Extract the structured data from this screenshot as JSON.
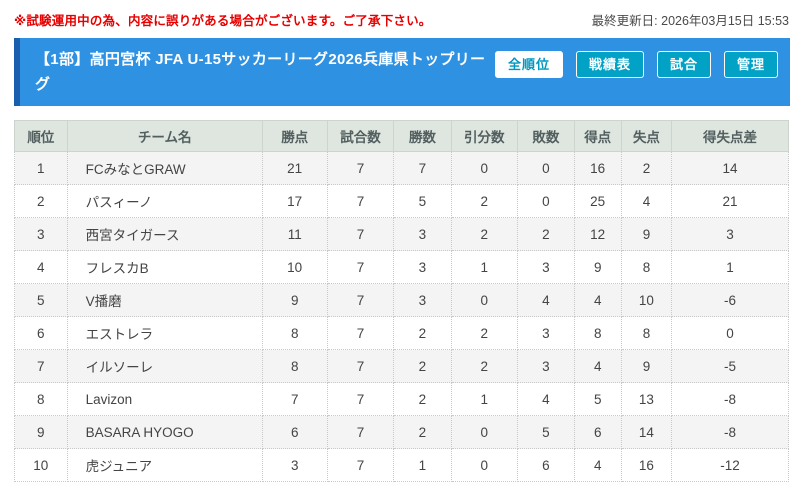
{
  "topbar": {
    "notice": "※試験運用中の為、内容に誤りがある場合がございます。ご了承下さい。",
    "last_updated": "最終更新日: 2026年03月15日 15:53"
  },
  "header": {
    "title": "【1部】高円宮杯 JFA U-15サッカーリーグ2026兵庫県トップリーグ",
    "buttons": [
      {
        "label": "全順位",
        "active": true
      },
      {
        "label": "戦績表",
        "active": false
      },
      {
        "label": "試合",
        "active": false
      },
      {
        "label": "管理",
        "active": false
      }
    ]
  },
  "colors": {
    "header_bg": "#2e91e2",
    "header_accent": "#1a5fae",
    "button_teal": "#01a2c6",
    "active_button_text": "#0097c0",
    "notice_red": "#e60000",
    "thead_bg": "#dfe6e0",
    "row_stripe": "#f4f4f4"
  },
  "table": {
    "columns": [
      "順位",
      "チーム名",
      "勝点",
      "試合数",
      "勝数",
      "引分数",
      "敗数",
      "得点",
      "失点",
      "得失点差"
    ],
    "column_widths_pct": [
      6.8,
      25.2,
      8.4,
      8.6,
      7.4,
      8.6,
      7.3,
      6.1,
      6.5,
      15.1
    ],
    "rows": [
      [
        "1",
        "FCみなとGRAW",
        "21",
        "7",
        "7",
        "0",
        "0",
        "16",
        "2",
        "14"
      ],
      [
        "2",
        "パスィーノ",
        "17",
        "7",
        "5",
        "2",
        "0",
        "25",
        "4",
        "21"
      ],
      [
        "3",
        "西宮タイガース",
        "11",
        "7",
        "3",
        "2",
        "2",
        "12",
        "9",
        "3"
      ],
      [
        "4",
        "フレスカB",
        "10",
        "7",
        "3",
        "1",
        "3",
        "9",
        "8",
        "1"
      ],
      [
        "5",
        "V播磨",
        "9",
        "7",
        "3",
        "0",
        "4",
        "4",
        "10",
        "-6"
      ],
      [
        "6",
        "エストレラ",
        "8",
        "7",
        "2",
        "2",
        "3",
        "8",
        "8",
        "0"
      ],
      [
        "7",
        "イルソーレ",
        "8",
        "7",
        "2",
        "2",
        "3",
        "4",
        "9",
        "-5"
      ],
      [
        "8",
        "Lavizon",
        "7",
        "7",
        "2",
        "1",
        "4",
        "5",
        "13",
        "-8"
      ],
      [
        "9",
        "BASARA HYOGO",
        "6",
        "7",
        "2",
        "0",
        "5",
        "6",
        "14",
        "-8"
      ],
      [
        "10",
        "虎ジュニア",
        "3",
        "7",
        "1",
        "0",
        "6",
        "4",
        "16",
        "-12"
      ]
    ]
  }
}
